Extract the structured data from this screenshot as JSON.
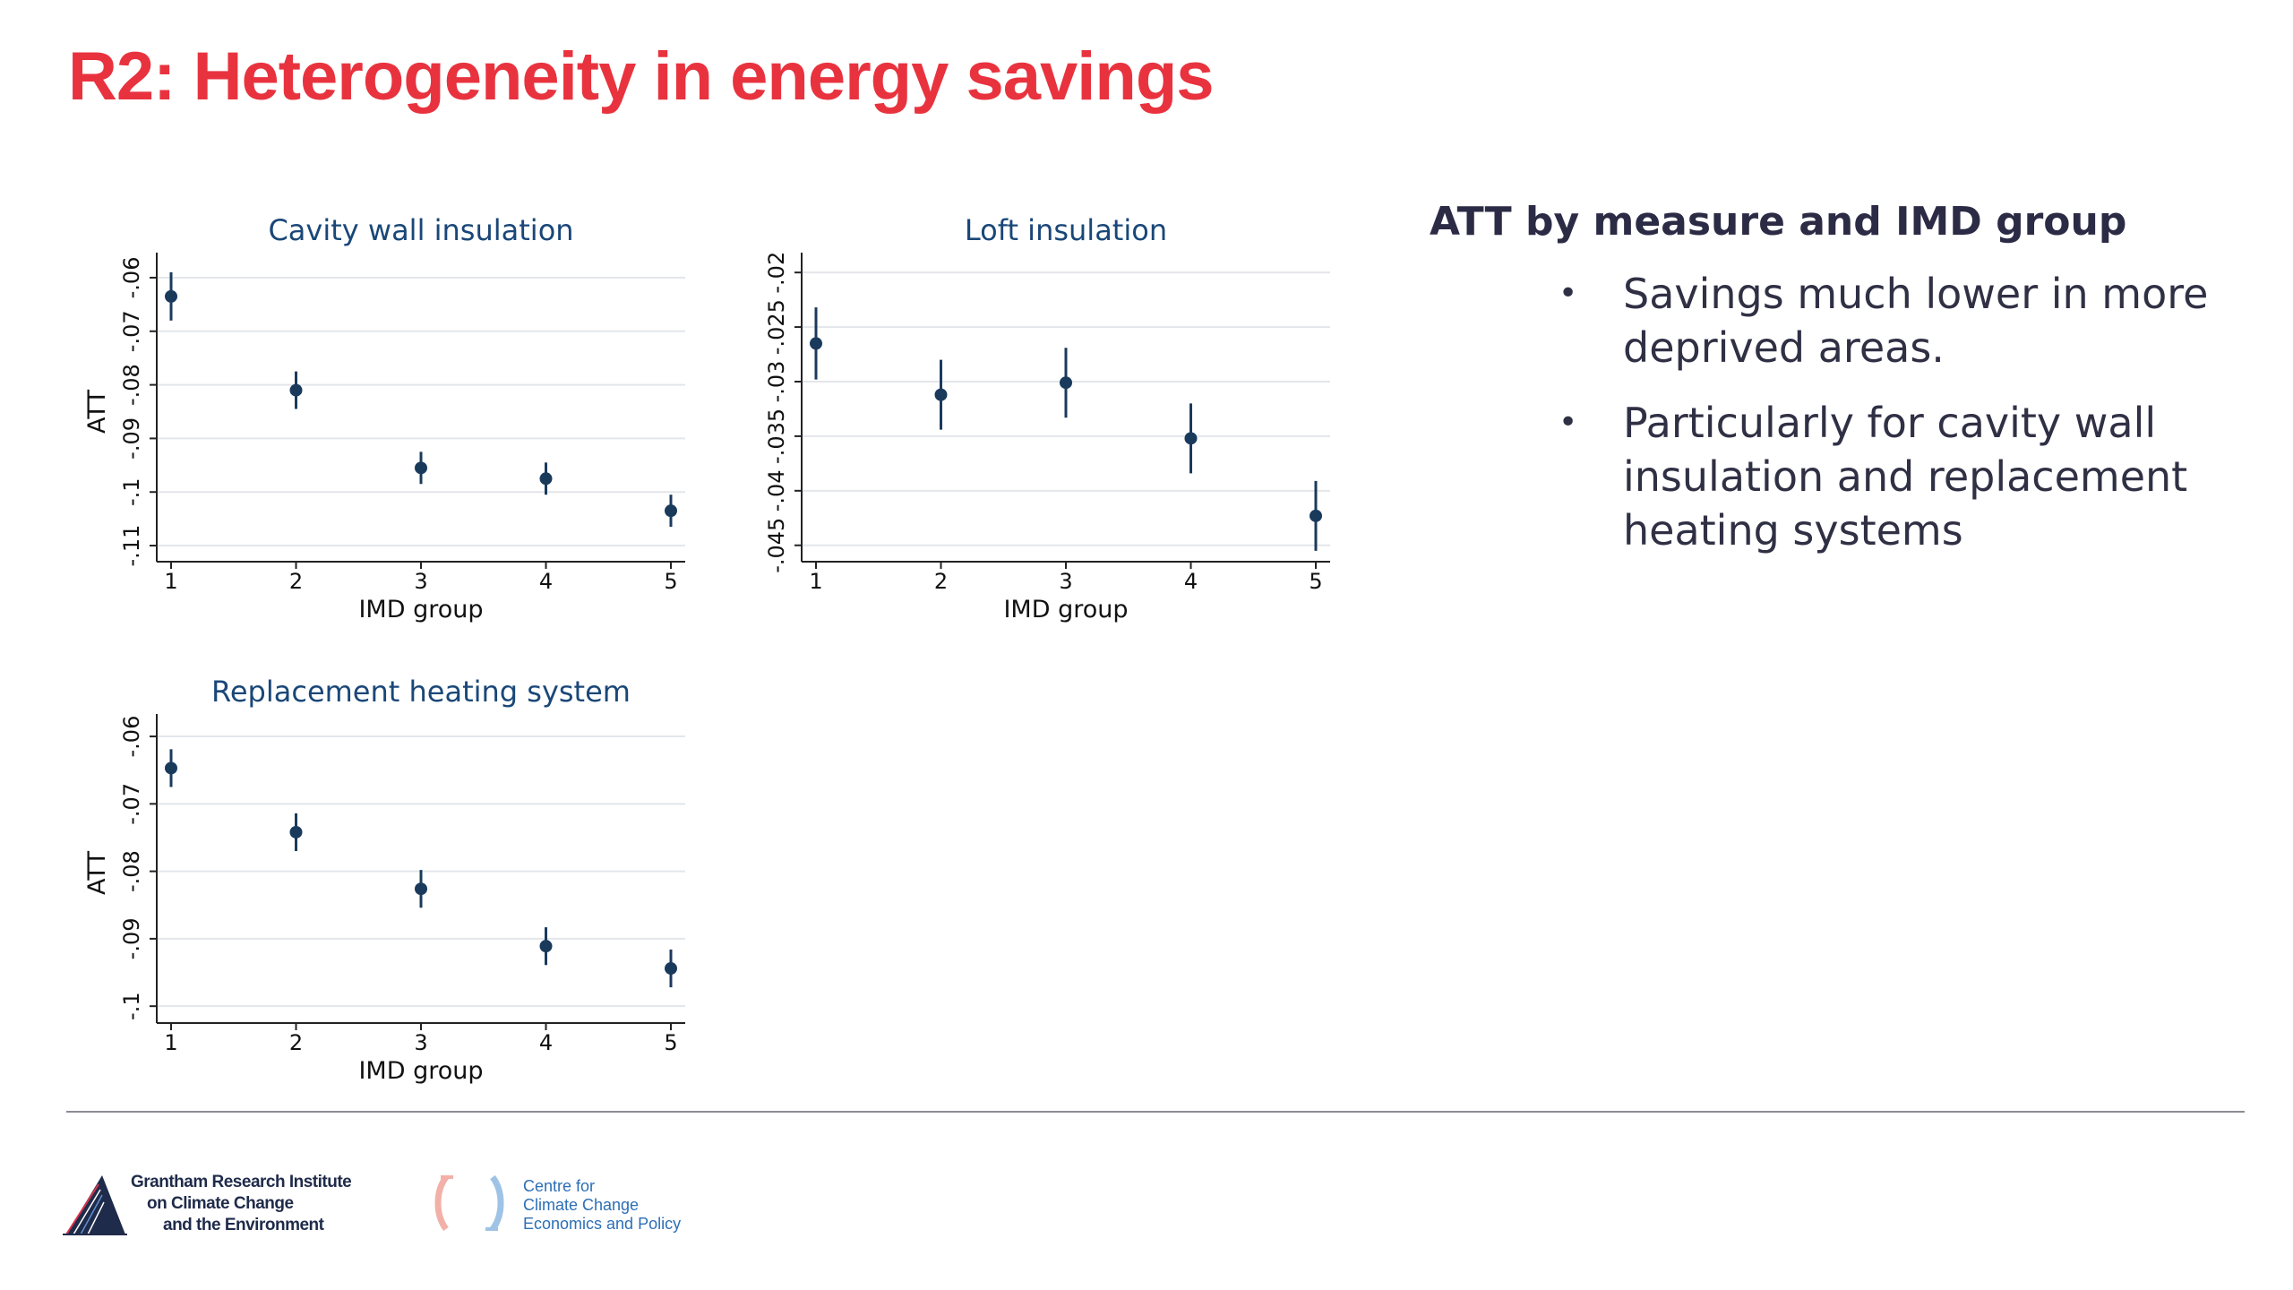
{
  "slide": {
    "title": "R2: Heterogeneity in energy savings",
    "heading": "ATT by measure and IMD group",
    "bullets": [
      "Savings much lower in more deprived areas.",
      "Particularly for cavity wall insulation and replacement heating systems"
    ]
  },
  "logos": {
    "grantham": [
      "Grantham Research Institute",
      "on Climate Change",
      "and the Environment"
    ],
    "cccep": [
      "Centre for",
      "Climate Change",
      "Economics and Policy"
    ]
  },
  "colors": {
    "title": "#e8333f",
    "marker": "#1a3a5c",
    "panel_title": "#1a4778"
  },
  "chart_data": [
    {
      "type": "scatter",
      "title": "Cavity wall insulation",
      "xlabel": "IMD group",
      "ylabel": "ATT",
      "x": [
        1,
        2,
        3,
        4,
        5
      ],
      "xticks": [
        "1",
        "2",
        "3",
        "4",
        "5"
      ],
      "yticks": [
        "-.11",
        "-.1",
        "-.09",
        "-.08",
        "-.07",
        "-.06"
      ],
      "ylim": [
        -0.113,
        -0.057
      ],
      "values": [
        -0.0635,
        -0.081,
        -0.0955,
        -0.0975,
        -0.1035
      ],
      "ci_low": [
        -0.068,
        -0.0845,
        -0.0985,
        -0.1005,
        -0.1065
      ],
      "ci_high": [
        -0.059,
        -0.0775,
        -0.0925,
        -0.0945,
        -0.1005
      ],
      "grid": true
    },
    {
      "type": "scatter",
      "title": "Loft insulation",
      "xlabel": "IMD group",
      "ylabel": "",
      "x": [
        1,
        2,
        3,
        4,
        5
      ],
      "xticks": [
        "1",
        "2",
        "3",
        "4",
        "5"
      ],
      "yticks": [
        "-.045",
        "-.04",
        "-.035",
        "-.03",
        "-.025",
        "-.02"
      ],
      "ylim": [
        -0.0465,
        -0.019
      ],
      "values": [
        -0.0265,
        -0.0312,
        -0.0301,
        -0.0352,
        -0.0423
      ],
      "ci_low": [
        -0.0298,
        -0.0344,
        -0.0333,
        -0.0384,
        -0.0455
      ],
      "ci_high": [
        -0.0232,
        -0.028,
        -0.0269,
        -0.032,
        -0.0391
      ],
      "grid": true
    },
    {
      "type": "scatter",
      "title": "Replacement heating system",
      "xlabel": "IMD group",
      "ylabel": "ATT",
      "x": [
        1,
        2,
        3,
        4,
        5
      ],
      "xticks": [
        "1",
        "2",
        "3",
        "4",
        "5"
      ],
      "yticks": [
        "-.1",
        "-.09",
        "-.08",
        "-.07",
        "-.06"
      ],
      "ylim": [
        -0.1025,
        -0.058
      ],
      "values": [
        -0.0647,
        -0.0742,
        -0.0826,
        -0.0911,
        -0.0944
      ],
      "ci_low": [
        -0.0675,
        -0.077,
        -0.0854,
        -0.0939,
        -0.0972
      ],
      "ci_high": [
        -0.0619,
        -0.0714,
        -0.0798,
        -0.0883,
        -0.0916
      ],
      "grid": true
    }
  ]
}
